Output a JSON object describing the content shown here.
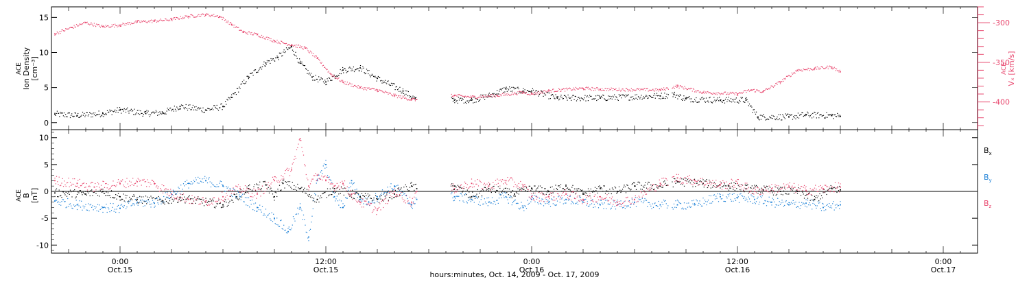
{
  "chart_data": [
    {
      "type": "scatter",
      "ylabel_lines": [
        "ACE",
        "Ion Density",
        "[cm⁻³]"
      ],
      "y2label_lines": [
        "ACE",
        "Vₓ [km/s]"
      ],
      "ylim": [
        -1,
        16.5
      ],
      "y2lim": [
        -435,
        -280
      ],
      "yticks": [
        "0",
        "5",
        "10",
        "15"
      ],
      "y2ticks": [
        "-300",
        "-350",
        "-400"
      ],
      "colors": {
        "density": "#000000",
        "vx": "#e8476e"
      },
      "series": [
        {
          "key": "density",
          "points": [
            [
              -3.8,
              1.2
            ],
            [
              -2.5,
              1.0
            ],
            [
              -1,
              1.3
            ],
            [
              0,
              1.8
            ],
            [
              1.5,
              1.3
            ],
            [
              2.5,
              1.4
            ],
            [
              3.5,
              2.3
            ],
            [
              5,
              1.8
            ],
            [
              6,
              2.3
            ],
            [
              6.5,
              3.6
            ],
            [
              7.5,
              6.5
            ],
            [
              8.5,
              8.5
            ],
            [
              9.2,
              9.3
            ],
            [
              10,
              10.8
            ],
            [
              10.5,
              8.5
            ],
            [
              11.2,
              6.5
            ],
            [
              12,
              5.8
            ],
            [
              13,
              7.5
            ],
            [
              14,
              7.8
            ],
            [
              15,
              6.3
            ],
            [
              16.5,
              4.5
            ],
            [
              17.2,
              3.4
            ],
            [
              19.5,
              3.2
            ],
            [
              20.5,
              3.2
            ],
            [
              21.5,
              3.8
            ],
            [
              22.5,
              4.8
            ],
            [
              23.5,
              4.5
            ],
            [
              24,
              4.5
            ],
            [
              25.5,
              3.5
            ],
            [
              28,
              3.5
            ],
            [
              31.5,
              3.8
            ],
            [
              32.3,
              4.0
            ],
            [
              33,
              3.4
            ],
            [
              35,
              3.2
            ],
            [
              36.5,
              3.2
            ],
            [
              37.2,
              0.8
            ],
            [
              39,
              0.8
            ],
            [
              40,
              1.1
            ],
            [
              41.5,
              1.0
            ],
            [
              42,
              0.9
            ]
          ],
          "gaps": [
            [
              17.3,
              19.3
            ],
            [
              32.0,
              32.2
            ]
          ]
        },
        {
          "key": "vx",
          "points": [
            [
              -3.8,
              -314
            ],
            [
              -2.8,
              -306
            ],
            [
              -2,
              -300
            ],
            [
              -1,
              -305
            ],
            [
              0,
              -303
            ],
            [
              1,
              -299
            ],
            [
              2,
              -298
            ],
            [
              3,
              -296
            ],
            [
              4,
              -292
            ],
            [
              5,
              -290
            ],
            [
              5.8,
              -292
            ],
            [
              6.5,
              -302
            ],
            [
              7.2,
              -312
            ],
            [
              8,
              -315
            ],
            [
              9,
              -323
            ],
            [
              10,
              -328
            ],
            [
              10.8,
              -332
            ],
            [
              11.5,
              -345
            ],
            [
              12.3,
              -365
            ],
            [
              13,
              -375
            ],
            [
              14,
              -382
            ],
            [
              15,
              -385
            ],
            [
              16,
              -392
            ],
            [
              17,
              -397
            ],
            [
              17.3,
              -397
            ],
            [
              19.5,
              -392
            ],
            [
              20.5,
              -394
            ],
            [
              22,
              -392
            ],
            [
              23.5,
              -388
            ],
            [
              24,
              -390
            ],
            [
              25,
              -386
            ],
            [
              27,
              -383
            ],
            [
              28,
              -384
            ],
            [
              31.5,
              -385
            ],
            [
              32.5,
              -380
            ],
            [
              34,
              -388
            ],
            [
              36,
              -390
            ],
            [
              36.8,
              -385
            ],
            [
              37.5,
              -387
            ],
            [
              38.5,
              -375
            ],
            [
              39.5,
              -360
            ],
            [
              40.5,
              -358
            ],
            [
              41.5,
              -356
            ],
            [
              42,
              -362
            ]
          ],
          "gaps": [
            [
              17.3,
              19.3
            ],
            [
              32.0,
              32.2
            ]
          ]
        }
      ]
    },
    {
      "type": "scatter",
      "ylabel_lines": [
        "ACE",
        "B",
        "[nT]"
      ],
      "ylim": [
        -11.5,
        11.5
      ],
      "yticks": [
        "10",
        "5",
        "0",
        "-5",
        "-10"
      ],
      "legend_position": "right",
      "series": [
        {
          "key": "bx",
          "name_main": "B",
          "name_sub": "x",
          "color": "#000000",
          "points": [
            [
              -3.8,
              -0.3
            ],
            [
              -2,
              -0.5
            ],
            [
              -1,
              0
            ],
            [
              0,
              -1
            ],
            [
              1,
              -1.5
            ],
            [
              2.5,
              -1.8
            ],
            [
              3.5,
              -1.2
            ],
            [
              5,
              -2
            ],
            [
              6,
              -2.5
            ],
            [
              6.8,
              -1
            ],
            [
              7.5,
              0.5
            ],
            [
              8.5,
              1.2
            ],
            [
              9,
              -1
            ],
            [
              9.5,
              1.5
            ],
            [
              10.5,
              0.5
            ],
            [
              11.5,
              -1.5
            ],
            [
              12.5,
              0.5
            ],
            [
              13.5,
              -0.5
            ],
            [
              14,
              -1
            ],
            [
              15,
              -1.5
            ],
            [
              16,
              -0.5
            ],
            [
              17,
              1
            ],
            [
              17.3,
              0.5
            ],
            [
              19.5,
              1
            ],
            [
              20.5,
              -1
            ],
            [
              21.5,
              0.5
            ],
            [
              23,
              -0.5
            ],
            [
              24,
              0.5
            ],
            [
              25,
              0
            ],
            [
              26,
              1
            ],
            [
              27,
              -0.5
            ],
            [
              28,
              0.5
            ],
            [
              29,
              0
            ],
            [
              30,
              1
            ],
            [
              31.5,
              1
            ],
            [
              32.5,
              1.8
            ],
            [
              34,
              1.5
            ],
            [
              35.5,
              1.0
            ],
            [
              36.5,
              0.5
            ],
            [
              37.5,
              0.3
            ],
            [
              38.5,
              0
            ],
            [
              39.5,
              0
            ],
            [
              40.5,
              -1.5
            ],
            [
              41.5,
              0.5
            ],
            [
              42,
              0.3
            ]
          ],
          "gaps": [
            [
              17.3,
              19.3
            ],
            [
              32.0,
              32.2
            ]
          ]
        },
        {
          "key": "by",
          "name_main": "B",
          "name_sub": "y",
          "color": "#1a7fd6",
          "points": [
            [
              -3.8,
              -1.8
            ],
            [
              -2.5,
              -2.5
            ],
            [
              -1,
              -3
            ],
            [
              0,
              -3.2
            ],
            [
              1,
              -2
            ],
            [
              2,
              -2.2
            ],
            [
              3,
              -0.5
            ],
            [
              4,
              1.5
            ],
            [
              5,
              2
            ],
            [
              6,
              1
            ],
            [
              7,
              -1
            ],
            [
              8,
              -3
            ],
            [
              9,
              -5
            ],
            [
              9.8,
              -7.5
            ],
            [
              10.5,
              -3
            ],
            [
              11,
              -8.5
            ],
            [
              11.5,
              2
            ],
            [
              12,
              5
            ],
            [
              12.5,
              -1
            ],
            [
              13,
              -3
            ],
            [
              13.5,
              2
            ],
            [
              14,
              -1.5
            ],
            [
              14.5,
              -2
            ],
            [
              15,
              -1
            ],
            [
              16,
              1
            ],
            [
              17,
              -2.5
            ],
            [
              17.3,
              -1.5
            ],
            [
              19.5,
              -1
            ],
            [
              20.5,
              -1.5
            ],
            [
              21.5,
              -2
            ],
            [
              22.5,
              -1
            ],
            [
              23.5,
              -3
            ],
            [
              24,
              -1.5
            ],
            [
              25,
              -2
            ],
            [
              26,
              -1.5
            ],
            [
              27,
              -2
            ],
            [
              28,
              -2.5
            ],
            [
              29,
              -2.5
            ],
            [
              30,
              -2
            ],
            [
              31.5,
              -2.5
            ],
            [
              32.5,
              -2.5
            ],
            [
              33.5,
              -2.5
            ],
            [
              35,
              -1
            ],
            [
              36,
              -1.2
            ],
            [
              37,
              -1.5
            ],
            [
              38,
              -2
            ],
            [
              39,
              -2.5
            ],
            [
              40,
              -2.2
            ],
            [
              41,
              -3
            ],
            [
              42,
              -2.5
            ]
          ],
          "gaps": [
            [
              17.3,
              19.3
            ],
            [
              32.0,
              32.2
            ]
          ]
        },
        {
          "key": "bz",
          "name_main": "B",
          "name_sub": "z",
          "color": "#e8476e",
          "points": [
            [
              -3.8,
              2
            ],
            [
              -2.5,
              1.5
            ],
            [
              -1.5,
              0.8
            ],
            [
              0,
              1.5
            ],
            [
              1,
              1.8
            ],
            [
              2,
              1.5
            ],
            [
              3,
              -0.5
            ],
            [
              4,
              -1.5
            ],
            [
              5,
              -2
            ],
            [
              6,
              -1
            ],
            [
              7,
              0.5
            ],
            [
              8,
              -0.5
            ],
            [
              9,
              2
            ],
            [
              10,
              4
            ],
            [
              10.5,
              9.8
            ],
            [
              11,
              1
            ],
            [
              11.5,
              3
            ],
            [
              12,
              2
            ],
            [
              12.5,
              1
            ],
            [
              13,
              1.5
            ],
            [
              13.5,
              -0.5
            ],
            [
              14,
              -2
            ],
            [
              15,
              -3.5
            ],
            [
              16,
              0
            ],
            [
              17,
              -2
            ],
            [
              17.3,
              0
            ],
            [
              19.5,
              0.5
            ],
            [
              20.5,
              1.5
            ],
            [
              21.5,
              1
            ],
            [
              22.5,
              2
            ],
            [
              23.5,
              1
            ],
            [
              24,
              -1
            ],
            [
              25,
              -1
            ],
            [
              26,
              -0.5
            ],
            [
              27,
              -1.5
            ],
            [
              28,
              -1
            ],
            [
              29,
              -2
            ],
            [
              30,
              -1.5
            ],
            [
              31.5,
              1.5
            ],
            [
              32.5,
              2.5
            ],
            [
              33.5,
              2
            ],
            [
              35,
              1.2
            ],
            [
              36,
              1.5
            ],
            [
              37,
              0
            ],
            [
              38,
              0.5
            ],
            [
              39,
              0.8
            ],
            [
              40,
              0.2
            ],
            [
              41,
              0.5
            ],
            [
              42,
              0.8
            ]
          ],
          "gaps": [
            [
              17.3,
              19.3
            ],
            [
              32.0,
              32.2
            ]
          ]
        }
      ]
    }
  ],
  "x_axis": {
    "range_hours": [
      -4,
      50
    ],
    "ticks": [
      {
        "time": "0:00",
        "date": "Oct.15",
        "h": 0
      },
      {
        "time": "12:00",
        "date": "Oct.15",
        "h": 12
      },
      {
        "time": "0:00",
        "date": "Oct.16",
        "h": 24
      },
      {
        "time": "12:00",
        "date": "Oct.16",
        "h": 36
      },
      {
        "time": "0:00",
        "date": "Oct.17",
        "h": 48
      }
    ],
    "label": "hours:minutes, Oct. 14, 2009 - Oct. 17, 2009"
  }
}
